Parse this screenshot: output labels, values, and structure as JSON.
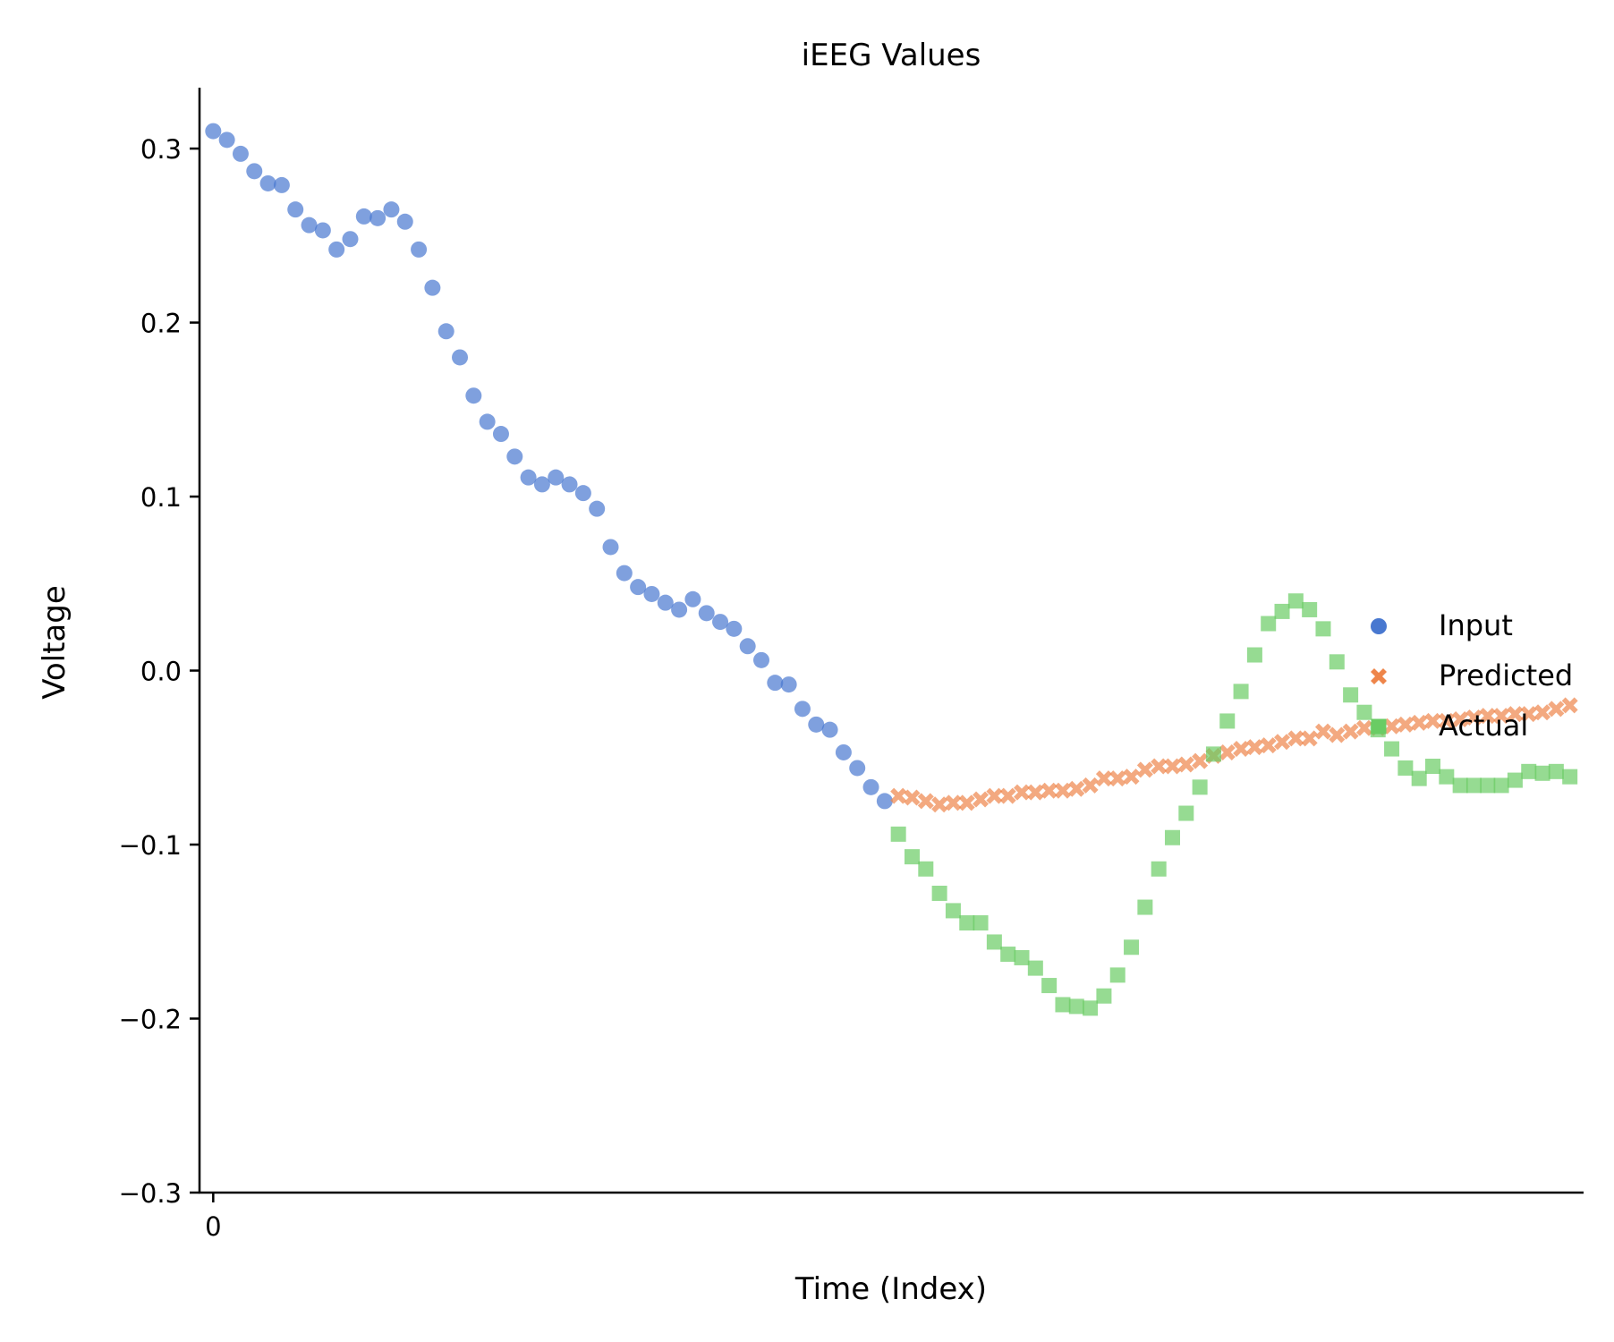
{
  "chart_data": {
    "type": "scatter",
    "title": "iEEG Values",
    "xlabel": "Time (Index)",
    "ylabel": "Voltage",
    "ylim": [
      -0.3,
      0.335
    ],
    "xlim": [
      -1,
      100
    ],
    "yticks": [
      {
        "value": 0.3,
        "label": "0.3"
      },
      {
        "value": 0.2,
        "label": "0.2"
      },
      {
        "value": 0.1,
        "label": "0.1"
      },
      {
        "value": 0.0,
        "label": "0.0"
      },
      {
        "value": -0.1,
        "label": "−0.1"
      },
      {
        "value": -0.2,
        "label": "−0.2"
      },
      {
        "value": -0.3,
        "label": "−0.3"
      }
    ],
    "xticks": [
      {
        "value": 0,
        "label": "0"
      }
    ],
    "legend": {
      "placement": "center-right"
    },
    "grid": false,
    "series": [
      {
        "name": "Input",
        "marker": "circle",
        "color": "#4878d0",
        "x": [
          0,
          1,
          2,
          3,
          4,
          5,
          6,
          7,
          8,
          9,
          10,
          11,
          12,
          13,
          14,
          15,
          16,
          17,
          18,
          19,
          20,
          21,
          22,
          23,
          24,
          25,
          26,
          27,
          28,
          29,
          30,
          31,
          32,
          33,
          34,
          35,
          36,
          37,
          38,
          39,
          40,
          41,
          42,
          43,
          44,
          45,
          46,
          47,
          48,
          49
        ],
        "y": [
          0.31,
          0.305,
          0.297,
          0.287,
          0.28,
          0.279,
          0.265,
          0.256,
          0.253,
          0.242,
          0.248,
          0.261,
          0.26,
          0.265,
          0.258,
          0.242,
          0.22,
          0.195,
          0.18,
          0.158,
          0.143,
          0.136,
          0.123,
          0.111,
          0.107,
          0.111,
          0.107,
          0.102,
          0.093,
          0.071,
          0.056,
          0.048,
          0.044,
          0.039,
          0.035,
          0.041,
          0.033,
          0.028,
          0.024,
          0.014,
          0.006,
          -0.007,
          -0.008,
          -0.022,
          -0.031,
          -0.034,
          -0.047,
          -0.056,
          -0.067,
          -0.075
        ]
      },
      {
        "name": "Predicted",
        "marker": "x",
        "color": "#ee854a",
        "x": [
          50,
          51,
          52,
          53,
          54,
          55,
          56,
          57,
          58,
          59,
          60,
          61,
          62,
          63,
          64,
          65,
          66,
          67,
          68,
          69,
          70,
          71,
          72,
          73,
          74,
          75,
          76,
          77,
          78,
          79,
          80,
          81,
          82,
          83,
          84,
          85,
          86,
          87,
          88,
          89,
          90,
          91,
          92,
          93,
          94,
          95,
          96,
          97,
          98,
          99
        ],
        "y": [
          -0.072,
          -0.073,
          -0.075,
          -0.077,
          -0.076,
          -0.076,
          -0.074,
          -0.072,
          -0.072,
          -0.07,
          -0.07,
          -0.069,
          -0.069,
          -0.068,
          -0.066,
          -0.062,
          -0.062,
          -0.061,
          -0.057,
          -0.055,
          -0.055,
          -0.054,
          -0.052,
          -0.049,
          -0.047,
          -0.045,
          -0.044,
          -0.043,
          -0.041,
          -0.039,
          -0.039,
          -0.035,
          -0.037,
          -0.035,
          -0.033,
          -0.033,
          -0.032,
          -0.031,
          -0.03,
          -0.029,
          -0.029,
          -0.028,
          -0.027,
          -0.026,
          -0.026,
          -0.025,
          -0.025,
          -0.024,
          -0.022,
          -0.02
        ]
      },
      {
        "name": "Actual",
        "marker": "square",
        "color": "#6acc64",
        "x": [
          50,
          51,
          52,
          53,
          54,
          55,
          56,
          57,
          58,
          59,
          60,
          61,
          62,
          63,
          64,
          65,
          66,
          67,
          68,
          69,
          70,
          71,
          72,
          73,
          74,
          75,
          76,
          77,
          78,
          79,
          80,
          81,
          82,
          83,
          84,
          85,
          86,
          87,
          88,
          89,
          90,
          91,
          92,
          93,
          94,
          95,
          96,
          97,
          98,
          99
        ],
        "y": [
          -0.094,
          -0.107,
          -0.114,
          -0.128,
          -0.138,
          -0.145,
          -0.145,
          -0.156,
          -0.163,
          -0.165,
          -0.171,
          -0.181,
          -0.192,
          -0.193,
          -0.194,
          -0.187,
          -0.175,
          -0.159,
          -0.136,
          -0.114,
          -0.096,
          -0.082,
          -0.067,
          -0.048,
          -0.029,
          -0.012,
          0.009,
          0.027,
          0.034,
          0.04,
          0.035,
          0.024,
          0.005,
          -0.014,
          -0.024,
          -0.034,
          -0.045,
          -0.056,
          -0.062,
          -0.055,
          -0.061,
          -0.066,
          -0.066,
          -0.066,
          -0.066,
          -0.063,
          -0.058,
          -0.059,
          -0.058,
          -0.061
        ]
      }
    ]
  }
}
